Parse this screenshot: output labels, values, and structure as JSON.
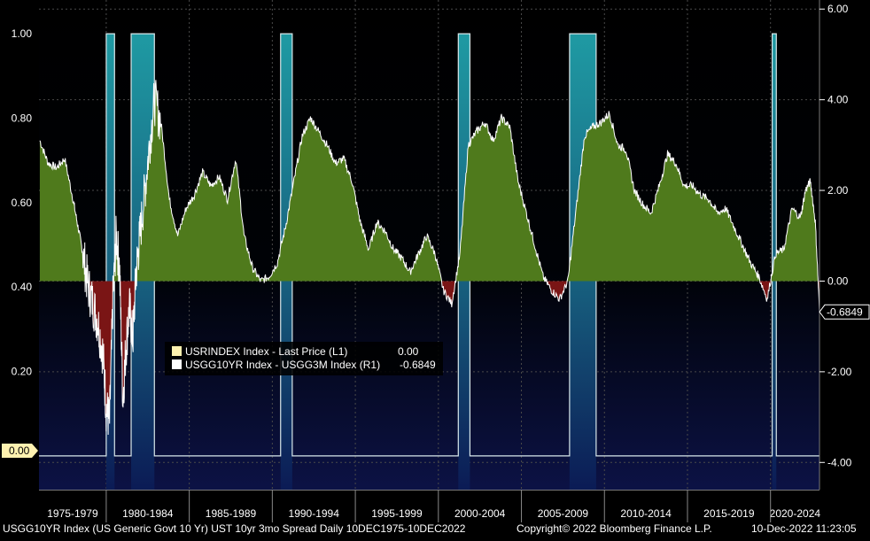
{
  "chart_data": {
    "type": "area",
    "x_range": [
      1975.95,
      2022.95
    ],
    "left_axis": {
      "ticks": [
        {
          "value": 1.0,
          "label": "1.00"
        },
        {
          "value": 0.8,
          "label": "0.80"
        },
        {
          "value": 0.6,
          "label": "0.60"
        },
        {
          "value": 0.4,
          "label": "0.40"
        },
        {
          "value": 0.2,
          "label": "0.20"
        }
      ],
      "range": [
        -0.08,
        1.08
      ],
      "current_value_label": "0.00"
    },
    "right_axis": {
      "ticks": [
        {
          "value": 6,
          "label": "6.00"
        },
        {
          "value": 4,
          "label": "4.00"
        },
        {
          "value": 2,
          "label": "2.00"
        },
        {
          "value": 0,
          "label": "0.00"
        },
        {
          "value": -2,
          "label": "-2.00"
        },
        {
          "value": -4,
          "label": "-4.00"
        }
      ],
      "range": [
        -4.6,
        6.2
      ],
      "current_value_label": "-0.6849"
    },
    "x_ticks": [
      "1975-1979",
      "1980-1984",
      "1985-1989",
      "1990-1994",
      "1995-1999",
      "2000-2004",
      "2005-2009",
      "2010-2014",
      "2015-2019",
      "2020-2024"
    ],
    "legend": [
      {
        "label": "USRINDEX Index - Last Price (L1)",
        "value": "0.00",
        "color": "#fff2b0"
      },
      {
        "label": "USGG10YR Index - USGG3M Index (R1)",
        "value": "-0.6849",
        "color": "#ffffff"
      }
    ],
    "series": [
      {
        "name": "USRINDEX Index - Last Price",
        "axis": "left",
        "kind": "recession_flag",
        "periods": [
          [
            1980.0,
            1980.5
          ],
          [
            1981.5,
            1982.9
          ],
          [
            1990.5,
            1991.2
          ],
          [
            2001.2,
            2001.9
          ],
          [
            2007.9,
            2009.5
          ],
          [
            2020.1,
            2020.35
          ]
        ]
      },
      {
        "name": "USGG10YR Index - USGG3M Index",
        "axis": "right",
        "kind": "spread",
        "x": [
          1976.0,
          1976.5,
          1977.0,
          1977.5,
          1978.0,
          1978.3,
          1978.6,
          1978.9,
          1979.2,
          1979.5,
          1979.8,
          1980.0,
          1980.2,
          1980.4,
          1980.6,
          1980.8,
          1981.0,
          1981.2,
          1981.4,
          1981.6,
          1981.8,
          1982.0,
          1982.3,
          1982.6,
          1982.9,
          1983.3,
          1983.8,
          1984.3,
          1984.8,
          1985.3,
          1985.8,
          1986.3,
          1986.8,
          1987.3,
          1987.8,
          1988.3,
          1988.8,
          1989.3,
          1989.8,
          1990.3,
          1990.8,
          1991.3,
          1991.8,
          1992.3,
          1992.8,
          1993.3,
          1993.8,
          1994.3,
          1994.8,
          1995.3,
          1995.8,
          1996.3,
          1996.8,
          1997.3,
          1997.8,
          1998.3,
          1998.8,
          1999.3,
          1999.8,
          2000.3,
          2000.8,
          2001.3,
          2001.8,
          2002.3,
          2002.8,
          2003.3,
          2003.8,
          2004.3,
          2004.8,
          2005.3,
          2005.8,
          2006.3,
          2006.8,
          2007.3,
          2007.8,
          2008.3,
          2008.8,
          2009.3,
          2009.8,
          2010.3,
          2010.8,
          2011.3,
          2011.8,
          2012.3,
          2012.8,
          2013.3,
          2013.8,
          2014.3,
          2014.8,
          2015.3,
          2015.8,
          2016.3,
          2016.8,
          2017.3,
          2017.8,
          2018.3,
          2018.8,
          2019.3,
          2019.8,
          2020.3,
          2020.8,
          2021.3,
          2021.8,
          2022.1,
          2022.4,
          2022.7,
          2022.95
        ],
        "y": [
          3.1,
          2.6,
          2.5,
          2.7,
          1.8,
          1.2,
          0.6,
          -0.1,
          -0.5,
          -0.9,
          -1.6,
          -2.8,
          -3.1,
          -0.4,
          1.0,
          0.3,
          -2.6,
          -1.4,
          -0.6,
          -1.3,
          0.2,
          0.9,
          1.9,
          3.0,
          4.0,
          3.5,
          1.8,
          1.0,
          1.6,
          1.9,
          2.4,
          2.1,
          2.3,
          1.8,
          2.7,
          1.0,
          0.3,
          0.0,
          0.1,
          0.4,
          1.2,
          2.2,
          3.2,
          3.6,
          3.3,
          3.0,
          2.6,
          2.7,
          2.2,
          1.3,
          0.7,
          1.3,
          1.1,
          0.7,
          0.5,
          0.2,
          0.6,
          1.0,
          0.6,
          -0.2,
          -0.5,
          0.6,
          3.0,
          3.3,
          3.5,
          3.1,
          3.6,
          3.4,
          2.2,
          1.5,
          0.8,
          0.1,
          -0.2,
          -0.4,
          0.0,
          1.6,
          3.2,
          3.4,
          3.5,
          3.7,
          3.0,
          2.9,
          2.0,
          1.7,
          1.5,
          2.1,
          2.8,
          2.6,
          2.1,
          2.1,
          1.9,
          1.8,
          1.5,
          1.6,
          1.2,
          0.8,
          0.4,
          0.1,
          -0.4,
          0.6,
          0.7,
          1.6,
          1.4,
          2.0,
          2.2,
          1.3,
          -0.68
        ]
      }
    ]
  },
  "footer": {
    "left": "USGG10YR Index (US Generic Govt 10 Yr) UST 10yr 3mo Spread  Daily 10DEC1975-10DEC2022",
    "center": "Copyright© 2022 Bloomberg Finance L.P.",
    "right": "10-Dec-2022 11:23:05"
  },
  "colors": {
    "positive_fill": "#4f7a1c",
    "negative_fill": "#7a1515",
    "recession_fill": "#1d8b93",
    "spread_line": "#ffffff",
    "recession_line": "#d8e7ea",
    "grid": "#4a4a4a"
  }
}
